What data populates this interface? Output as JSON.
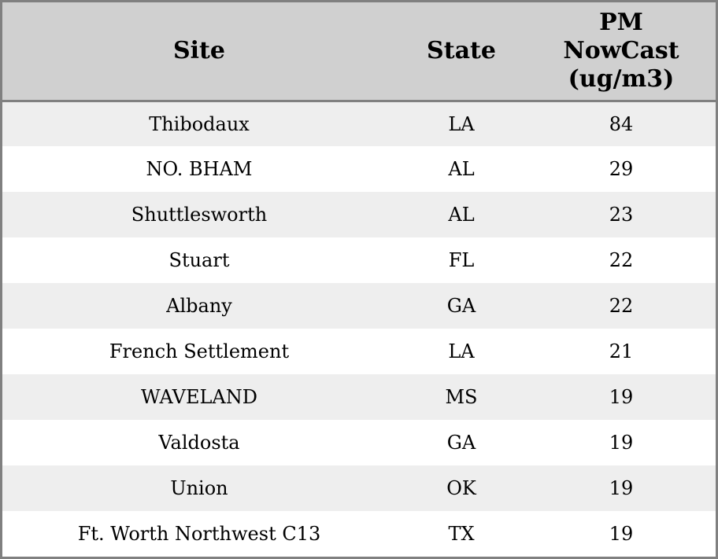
{
  "colors": {
    "border": "#808080",
    "header_bg": "#d0d0d0",
    "stripe_bg": "#eeeeee",
    "row_bg": "#ffffff",
    "text": "#000000"
  },
  "chart_data": {
    "type": "table",
    "columns": [
      "Site",
      "State",
      "PM NowCast (ug/m3)"
    ],
    "rows": [
      [
        "Thibodaux",
        "LA",
        84
      ],
      [
        "NO. BHAM",
        "AL",
        29
      ],
      [
        "Shuttlesworth",
        "AL",
        23
      ],
      [
        "Stuart",
        "FL",
        22
      ],
      [
        "Albany",
        "GA",
        22
      ],
      [
        "French Settlement",
        "LA",
        21
      ],
      [
        "WAVELAND",
        "MS",
        19
      ],
      [
        "Valdosta",
        "GA",
        19
      ],
      [
        "Union",
        "OK",
        19
      ],
      [
        "Ft. Worth Northwest C13",
        "TX",
        19
      ]
    ]
  }
}
